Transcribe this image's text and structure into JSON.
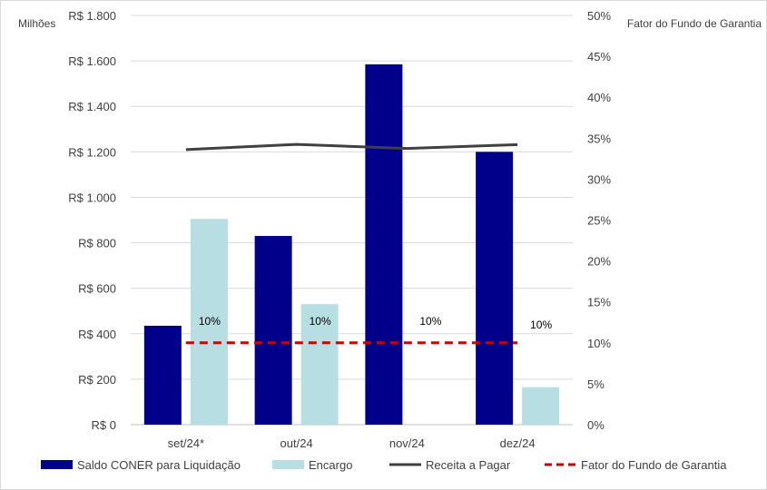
{
  "chart_data": {
    "type": "bar",
    "categories": [
      "set/24*",
      "out/24",
      "nov/24",
      "dez/24"
    ],
    "series": [
      {
        "name": "Saldo CONER para Liquidação",
        "kind": "bar",
        "axis": "left",
        "color": "#00008b",
        "values": [
          435,
          830,
          1585,
          1200
        ]
      },
      {
        "name": "Encargo",
        "kind": "bar",
        "axis": "left",
        "color": "#b7dee2",
        "values": [
          905,
          530,
          null,
          165
        ]
      },
      {
        "name": "Receita a Pagar",
        "kind": "line",
        "axis": "left",
        "color": "#404040",
        "values": [
          1210,
          1233,
          1215,
          1232
        ]
      },
      {
        "name": "Fator do Fundo de Garantia",
        "kind": "dashed-line",
        "axis": "right",
        "color": "#d00000",
        "values": [
          10,
          10,
          10,
          10
        ],
        "labels": [
          "10%",
          "10%",
          "10%",
          "10%"
        ]
      }
    ],
    "left_axis": {
      "title": "Milhões",
      "ylim": [
        0,
        1800
      ],
      "ticks": [
        0,
        200,
        400,
        600,
        800,
        1000,
        1200,
        1400,
        1600,
        1800
      ],
      "tick_labels": [
        "R$ 0",
        "R$ 200",
        "R$ 400",
        "R$ 600",
        "R$ 800",
        "R$ 1.000",
        "R$ 1.200",
        "R$ 1.400",
        "R$ 1.600",
        "R$ 1.800"
      ]
    },
    "right_axis": {
      "title": "Fator do Fundo de Garantia",
      "ylim": [
        0,
        50
      ],
      "ticks": [
        0,
        5,
        10,
        15,
        20,
        25,
        30,
        35,
        40,
        45,
        50
      ],
      "tick_labels": [
        "0%",
        "5%",
        "10%",
        "15%",
        "20%",
        "25%",
        "30%",
        "35%",
        "40%",
        "45%",
        "50%"
      ]
    },
    "grid": true,
    "legend": "bottom"
  }
}
